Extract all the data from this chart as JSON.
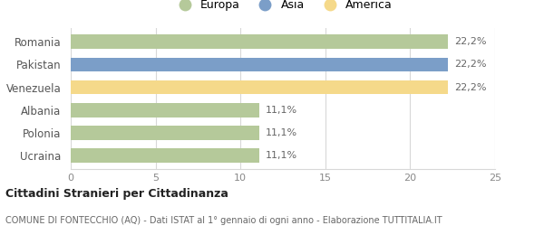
{
  "categories": [
    "Ucraina",
    "Polonia",
    "Albania",
    "Venezuela",
    "Pakistan",
    "Romania"
  ],
  "values": [
    11.1,
    11.1,
    11.1,
    22.2,
    22.2,
    22.2
  ],
  "colors": [
    "#b5c99a",
    "#b5c99a",
    "#b5c99a",
    "#f5d98a",
    "#7b9ec8",
    "#b5c99a"
  ],
  "bar_labels": [
    "11,1%",
    "11,1%",
    "11,1%",
    "22,2%",
    "22,2%",
    "22,2%"
  ],
  "xlim": [
    0,
    25
  ],
  "xticks": [
    0,
    5,
    10,
    15,
    20,
    25
  ],
  "legend": [
    {
      "label": "Europa",
      "color": "#b5c99a"
    },
    {
      "label": "Asia",
      "color": "#7b9ec8"
    },
    {
      "label": "America",
      "color": "#f5d98a"
    }
  ],
  "title_bold": "Cittadini Stranieri per Cittadinanza",
  "subtitle": "COMUNE DI FONTECCHIO (AQ) - Dati ISTAT al 1° gennaio di ogni anno - Elaborazione TUTTITALIA.IT",
  "bg_color": "#ffffff",
  "grid_color": "#d8d8d8",
  "bar_height": 0.62
}
